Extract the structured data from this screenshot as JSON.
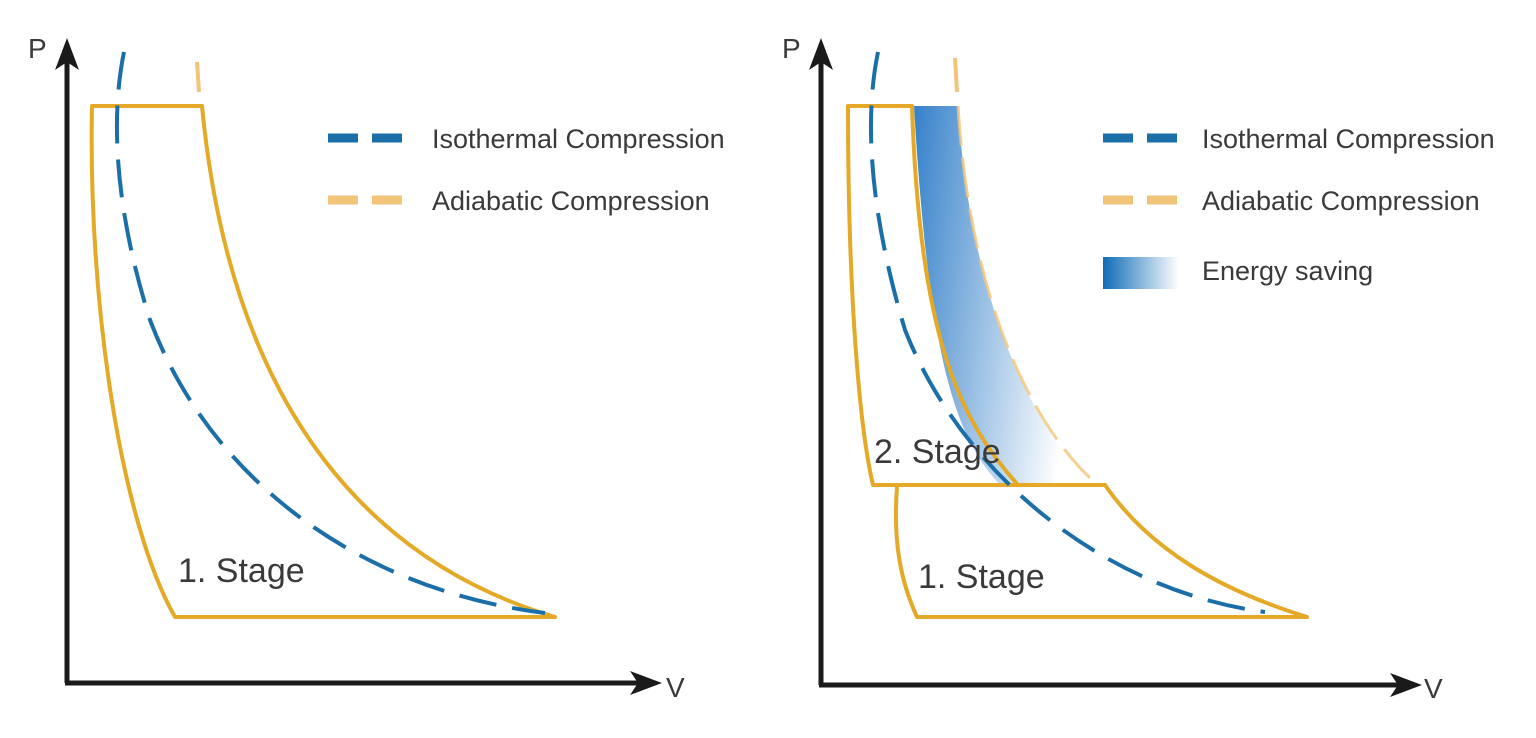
{
  "colors": {
    "isothermal": "#1a6fa8",
    "adiabatic": "#f2c47a",
    "stage_outline": "#e3a927",
    "energy_saving_start": "#1f73c4",
    "energy_saving_end": "#ffffff",
    "axis": "#1a1a1a"
  },
  "left_diagram": {
    "axis_y_label": "P",
    "axis_x_label": "V",
    "stage_1_label": "1. Stage",
    "legend": [
      {
        "label": "Isothermal Compression",
        "icon": "blue-dashed-line"
      },
      {
        "label": "Adiabatic Compression",
        "icon": "orange-dashed-line"
      }
    ]
  },
  "right_diagram": {
    "axis_y_label": "P",
    "axis_x_label": "V",
    "stage_1_label": "1. Stage",
    "stage_2_label": "2. Stage",
    "legend": [
      {
        "label": "Isothermal Compression",
        "icon": "blue-dashed-line"
      },
      {
        "label": "Adiabatic Compression",
        "icon": "orange-dashed-line"
      },
      {
        "label": "Energy saving",
        "icon": "blue-gradient-swatch"
      }
    ]
  }
}
